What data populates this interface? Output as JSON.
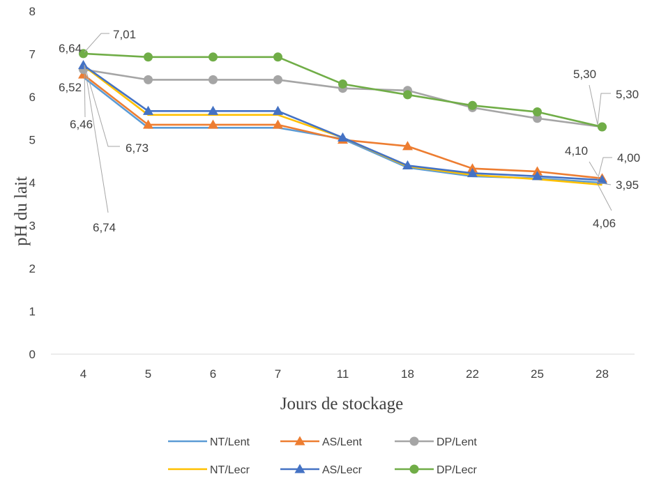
{
  "chart_data": {
    "type": "line",
    "title": "",
    "xlabel": "Jours de stockage",
    "ylabel": "pH du lait",
    "x": [
      "4",
      "5",
      "6",
      "7",
      "11",
      "18",
      "22",
      "25",
      "28"
    ],
    "ylim": [
      0,
      8
    ],
    "yticks": [
      0,
      1,
      2,
      3,
      4,
      5,
      6,
      7,
      8
    ],
    "grid": false,
    "legend": "bottom",
    "series": [
      {
        "name": "NT/Lent",
        "marker": "none",
        "color": "#5b9bd5",
        "values": [
          6.46,
          5.28,
          5.28,
          5.28,
          5.02,
          4.35,
          4.15,
          4.1,
          4.0
        ]
      },
      {
        "name": "AS/Lent",
        "marker": "triangle",
        "color": "#ed7d31",
        "values": [
          6.52,
          5.35,
          5.35,
          5.35,
          5.0,
          4.85,
          4.33,
          4.26,
          4.1
        ]
      },
      {
        "name": "DP/Lent",
        "marker": "circle",
        "color": "#a5a5a5",
        "values": [
          6.64,
          6.4,
          6.4,
          6.4,
          6.2,
          6.15,
          5.75,
          5.5,
          5.3
        ]
      },
      {
        "name": "NT/Lecr",
        "marker": "none",
        "color": "#ffc000",
        "values": [
          6.73,
          5.58,
          5.58,
          5.58,
          5.05,
          4.38,
          4.18,
          4.08,
          3.95
        ]
      },
      {
        "name": "AS/Lecr",
        "marker": "triangle",
        "color": "#4472c4",
        "values": [
          6.74,
          5.67,
          5.67,
          5.67,
          5.05,
          4.4,
          4.22,
          4.15,
          4.06
        ]
      },
      {
        "name": "DP/Lecr",
        "marker": "circle",
        "color": "#70ad47",
        "values": [
          7.01,
          6.93,
          6.93,
          6.93,
          6.3,
          6.05,
          5.8,
          5.65,
          5.3
        ]
      }
    ],
    "annotations": [
      {
        "text": "7,01",
        "series": "DP/Lecr",
        "x": "4"
      },
      {
        "text": "6,64",
        "series": "DP/Lent",
        "x": "4"
      },
      {
        "text": "6,52",
        "series": "AS/Lent",
        "x": "4"
      },
      {
        "text": "6,46",
        "series": "NT/Lent",
        "x": "4"
      },
      {
        "text": "6,73",
        "series": "NT/Lecr",
        "x": "4"
      },
      {
        "text": "6,74",
        "series": "AS/Lecr",
        "x": "4"
      },
      {
        "text": "5,30",
        "series": "DP/Lent",
        "x": "28"
      },
      {
        "text": "5,30",
        "series": "DP/Lecr",
        "x": "28"
      },
      {
        "text": "4,10",
        "series": "AS/Lent",
        "x": "28"
      },
      {
        "text": "4,00",
        "series": "NT/Lent",
        "x": "28"
      },
      {
        "text": "3,95",
        "series": "NT/Lecr",
        "x": "28"
      },
      {
        "text": "4,06",
        "series": "AS/Lecr",
        "x": "28"
      }
    ]
  }
}
